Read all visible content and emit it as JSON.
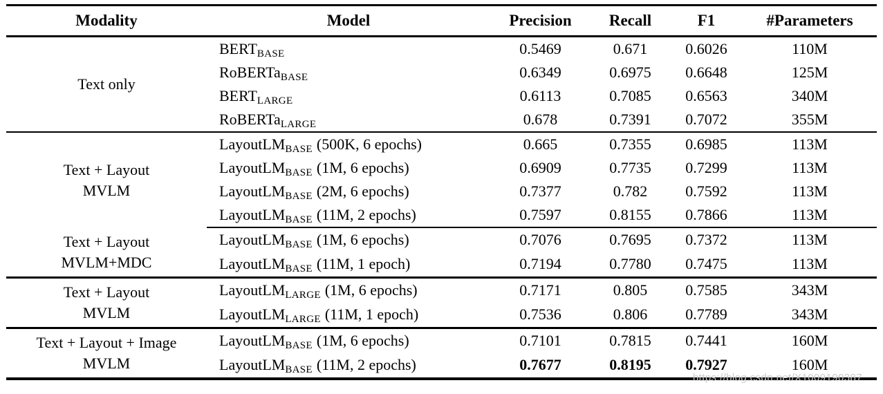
{
  "watermark": "https://blog.csdn.net/X1009190387",
  "table": {
    "headers": {
      "modality": "Modality",
      "model": "Model",
      "precision": "Precision",
      "recall": "Recall",
      "f1": "F1",
      "params": "#Parameters"
    },
    "groups": [
      {
        "modality_line1": "Text only",
        "modality_line2": "",
        "rows": [
          {
            "model": "BERT",
            "sub": "BASE",
            "config": "",
            "precision": "0.5469",
            "recall": "0.671",
            "f1": "0.6026",
            "params": "110M"
          },
          {
            "model": "RoBERTa",
            "sub": "BASE",
            "config": "",
            "precision": "0.6349",
            "recall": "0.6975",
            "f1": "0.6648",
            "params": "125M"
          },
          {
            "model": "BERT",
            "sub": "LARGE",
            "config": "",
            "precision": "0.6113",
            "recall": "0.7085",
            "f1": "0.6563",
            "params": "340M"
          },
          {
            "model": "RoBERTa",
            "sub": "LARGE",
            "config": "",
            "precision": "0.678",
            "recall": "0.7391",
            "f1": "0.7072",
            "params": "355M"
          }
        ]
      },
      {
        "modality_line1": "Text + Layout",
        "modality_line2": "MVLM",
        "rows": [
          {
            "model": "LayoutLM",
            "sub": "BASE",
            "config": "(500K, 6 epochs)",
            "precision": "0.665",
            "recall": "0.7355",
            "f1": "0.6985",
            "params": "113M"
          },
          {
            "model": "LayoutLM",
            "sub": "BASE",
            "config": "(1M, 6 epochs)",
            "precision": "0.6909",
            "recall": "0.7735",
            "f1": "0.7299",
            "params": "113M"
          },
          {
            "model": "LayoutLM",
            "sub": "BASE",
            "config": "(2M, 6 epochs)",
            "precision": "0.7377",
            "recall": "0.782",
            "f1": "0.7592",
            "params": "113M"
          },
          {
            "model": "LayoutLM",
            "sub": "BASE",
            "config": "(11M, 2 epochs)",
            "precision": "0.7597",
            "recall": "0.8155",
            "f1": "0.7866",
            "params": "113M"
          }
        ]
      },
      {
        "modality_line1": "Text + Layout",
        "modality_line2": "MVLM+MDC",
        "rows": [
          {
            "model": "LayoutLM",
            "sub": "BASE",
            "config": "(1M, 6 epochs)",
            "precision": "0.7076",
            "recall": "0.7695",
            "f1": "0.7372",
            "params": "113M"
          },
          {
            "model": "LayoutLM",
            "sub": "BASE",
            "config": "(11M, 1 epoch)",
            "precision": "0.7194",
            "recall": "0.7780",
            "f1": "0.7475",
            "params": "113M"
          }
        ]
      },
      {
        "modality_line1": "Text + Layout",
        "modality_line2": "MVLM",
        "rows": [
          {
            "model": "LayoutLM",
            "sub": "LARGE",
            "config": "(1M, 6 epochs)",
            "precision": "0.7171",
            "recall": "0.805",
            "f1": "0.7585",
            "params": "343M"
          },
          {
            "model": "LayoutLM",
            "sub": "LARGE",
            "config": "(11M, 1 epoch)",
            "precision": "0.7536",
            "recall": "0.806",
            "f1": "0.7789",
            "params": "343M"
          }
        ]
      },
      {
        "modality_line1": "Text + Layout + Image",
        "modality_line2": "MVLM",
        "rows": [
          {
            "model": "LayoutLM",
            "sub": "BASE",
            "config": "(1M, 6 epochs)",
            "precision": "0.7101",
            "recall": "0.7815",
            "f1": "0.7441",
            "params": "160M"
          },
          {
            "model": "LayoutLM",
            "sub": "BASE",
            "config": "(11M, 2 epochs)",
            "precision": "0.7677",
            "recall": "0.8195",
            "f1": "0.7927",
            "params": "160M"
          }
        ]
      }
    ]
  }
}
